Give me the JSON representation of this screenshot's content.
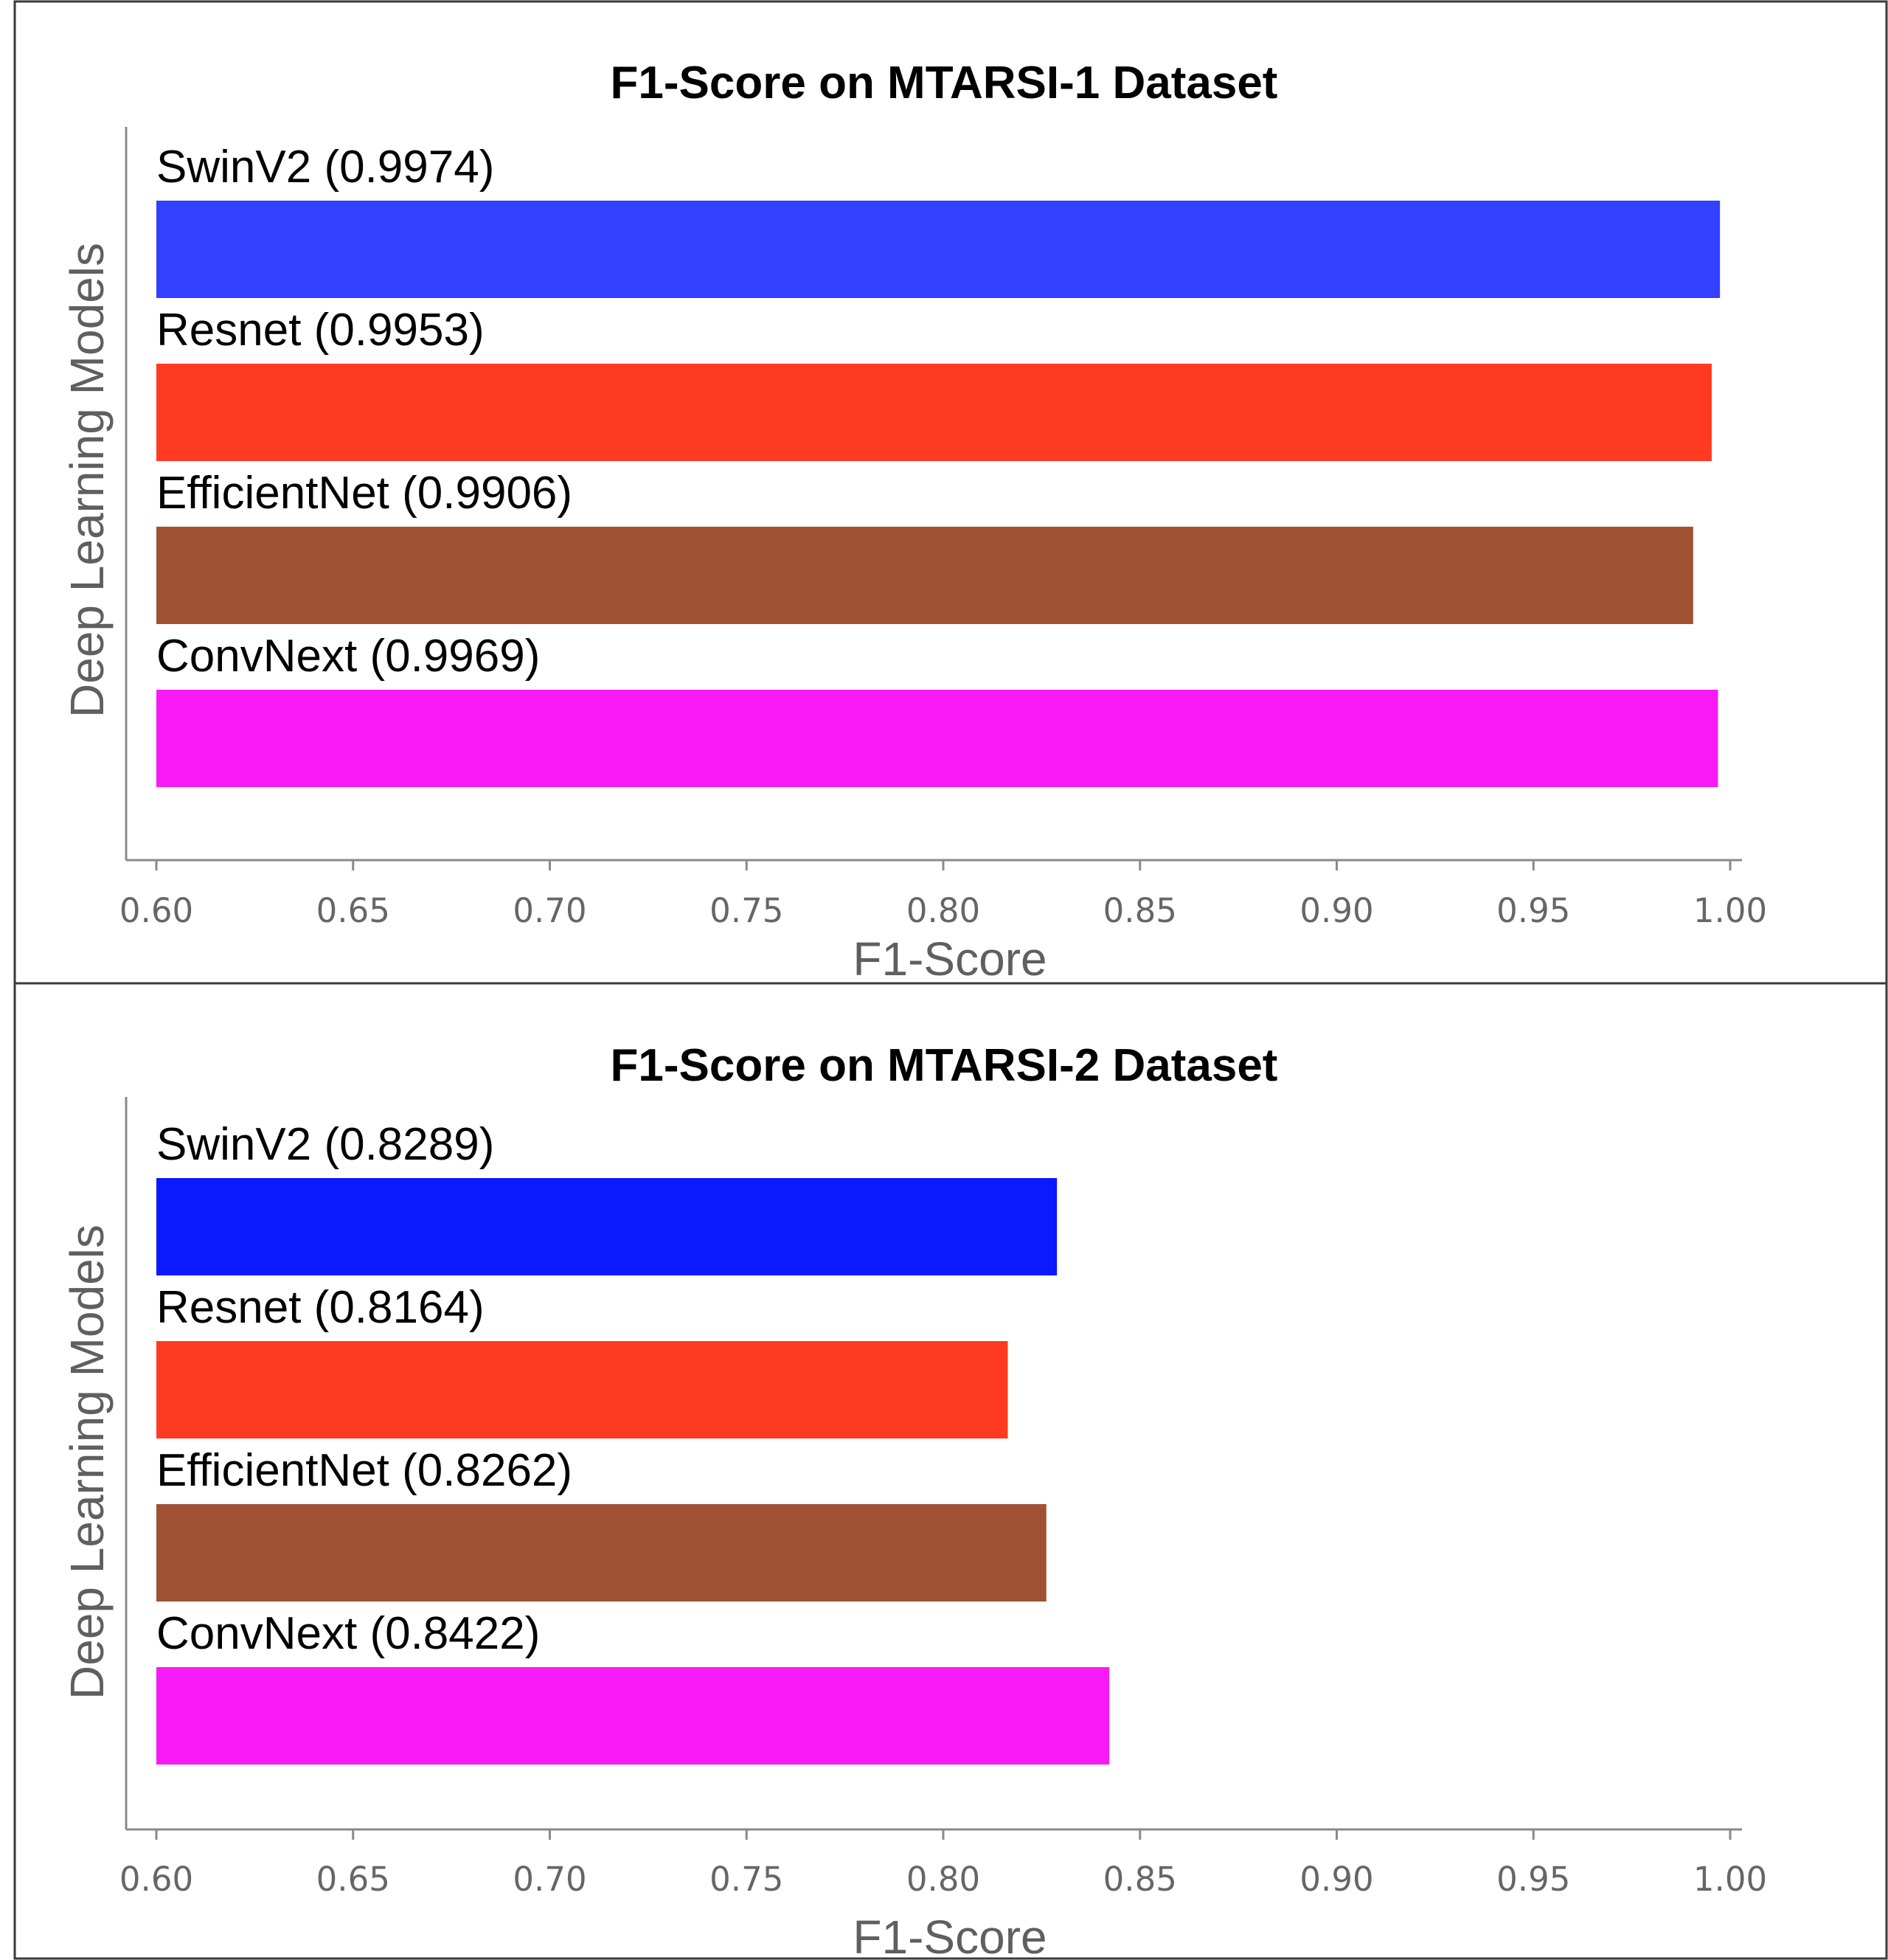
{
  "chart_data": [
    {
      "type": "bar",
      "orientation": "horizontal",
      "title": "F1-Score on MTARSI-1 Dataset",
      "xlabel": "F1-Score",
      "ylabel": "Deep Learning Models",
      "xlim": [
        0.6,
        1.0
      ],
      "xticks": [
        "0.60",
        "0.65",
        "0.70",
        "0.75",
        "0.80",
        "0.85",
        "0.90",
        "0.95",
        "1.00"
      ],
      "grid": false,
      "bars": [
        {
          "category": "SwinV2",
          "value": 0.9974,
          "label": "SwinV2 (0.9974)",
          "color": "#3340FF"
        },
        {
          "category": "Resnet",
          "value": 0.9953,
          "label": "Resnet (0.9953)",
          "color": "#FF3A22"
        },
        {
          "category": "EfficientNet",
          "value": 0.9906,
          "label": "EfficientNet (0.9906)",
          "color": "#A05033"
        },
        {
          "category": "ConvNext",
          "value": 0.9969,
          "label": "ConvNext (0.9969)",
          "color": "#F81AF6"
        }
      ]
    },
    {
      "type": "bar",
      "orientation": "horizontal",
      "title": "F1-Score on MTARSI-2 Dataset",
      "xlabel": "F1-Score",
      "ylabel": "Deep Learning Models",
      "xlim": [
        0.6,
        1.0
      ],
      "xticks": [
        "0.60",
        "0.65",
        "0.70",
        "0.75",
        "0.80",
        "0.85",
        "0.90",
        "0.95",
        "1.00"
      ],
      "grid": false,
      "bars": [
        {
          "category": "SwinV2",
          "value": 0.8289,
          "label": "SwinV2 (0.8289)",
          "color": "#0A19FF"
        },
        {
          "category": "Resnet",
          "value": 0.8164,
          "label": "Resnet (0.8164)",
          "color": "#FF3A22"
        },
        {
          "category": "EfficientNet",
          "value": 0.8262,
          "label": "EfficientNet (0.8262)",
          "color": "#A05033"
        },
        {
          "category": "ConvNext",
          "value": 0.8422,
          "label": "ConvNext (0.8422)",
          "color": "#F81AF6"
        }
      ]
    }
  ]
}
